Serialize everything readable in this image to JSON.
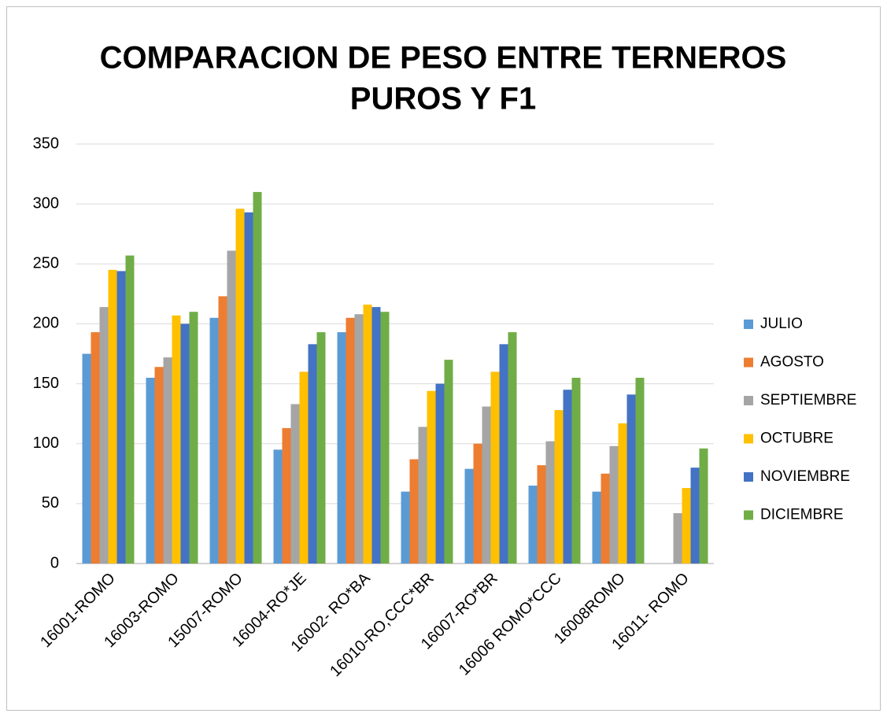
{
  "chart_data": {
    "type": "bar",
    "title": [
      "COMPARACION DE PESO ENTRE TERNEROS",
      "PUROS Y F1"
    ],
    "categories": [
      "16001-ROMO",
      "16003-ROMO",
      "15007-ROMO",
      "16004-RO*JE",
      "16002- RO*BA",
      "16010-RO,CCC*BR",
      "16007-RO*BR",
      "16006 ROMO*CCC",
      "16008ROMO",
      "16011- ROMO"
    ],
    "series": [
      {
        "name": "JULIO",
        "color": "#5b9bd5",
        "values": [
          175,
          155,
          205,
          95,
          193,
          60,
          79,
          65,
          60,
          null
        ]
      },
      {
        "name": "AGOSTO",
        "color": "#ed7d31",
        "values": [
          193,
          164,
          223,
          113,
          205,
          87,
          100,
          82,
          75,
          null
        ]
      },
      {
        "name": "SEPTIEMBRE",
        "color": "#a5a5a5",
        "values": [
          214,
          172,
          261,
          133,
          208,
          114,
          131,
          102,
          98,
          42
        ]
      },
      {
        "name": "OCTUBRE",
        "color": "#ffc000",
        "values": [
          245,
          207,
          296,
          160,
          216,
          144,
          160,
          128,
          117,
          63
        ]
      },
      {
        "name": "NOVIEMBRE",
        "color": "#4472c4",
        "values": [
          244,
          200,
          293,
          183,
          214,
          150,
          183,
          145,
          141,
          80
        ]
      },
      {
        "name": "DICIEMBRE",
        "color": "#70ad47",
        "values": [
          257,
          210,
          310,
          193,
          210,
          170,
          193,
          155,
          155,
          96
        ]
      }
    ],
    "ylim": [
      0,
      350
    ],
    "yticks": [
      0,
      50,
      100,
      150,
      200,
      250,
      300,
      350
    ],
    "grid": true,
    "legend": "right"
  }
}
